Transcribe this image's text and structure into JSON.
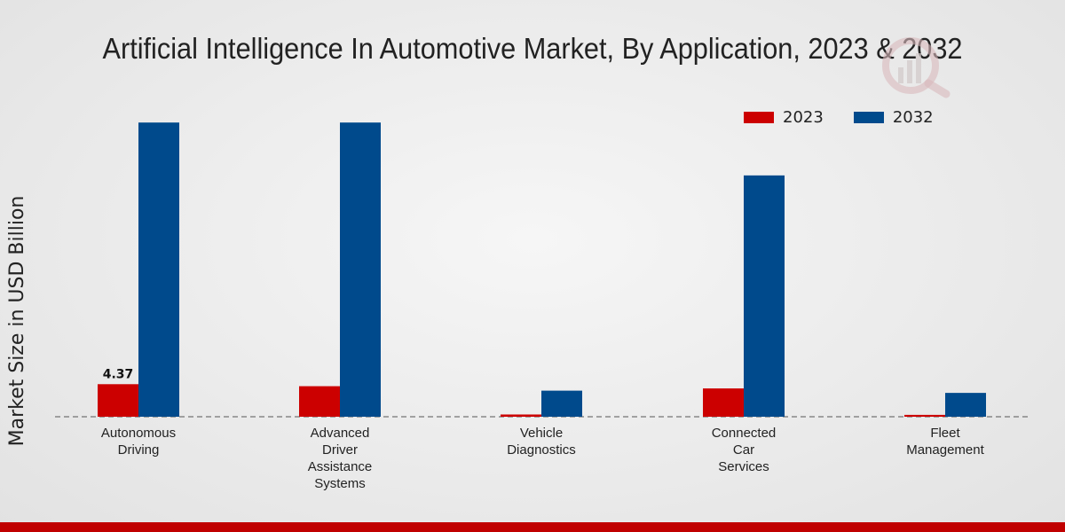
{
  "chart_data": {
    "type": "bar",
    "title": "Artificial Intelligence In Automotive Market, By Application, 2023 & 2032",
    "xlabel": "",
    "ylabel": "Market Size in USD Billion",
    "categories": [
      [
        "Autonomous",
        "Driving"
      ],
      [
        "Advanced",
        "Driver",
        "Assistance",
        "Systems"
      ],
      [
        "Vehicle",
        "Diagnostics"
      ],
      [
        "Connected",
        "Car",
        "Services"
      ],
      [
        "Fleet",
        "Management"
      ]
    ],
    "series": [
      {
        "name": "2023",
        "color": "#cc0000",
        "values": [
          4.37,
          4.1,
          0.3,
          3.8,
          0.25
        ]
      },
      {
        "name": "2032",
        "color": "#004a8c",
        "values": [
          39.5,
          39.5,
          3.5,
          32.4,
          3.2
        ]
      }
    ],
    "data_labels": [
      {
        "series": 0,
        "index": 0,
        "text": "4.37"
      }
    ],
    "ylim": [
      0,
      50
    ],
    "grid": false,
    "legend_position": "top-right"
  }
}
